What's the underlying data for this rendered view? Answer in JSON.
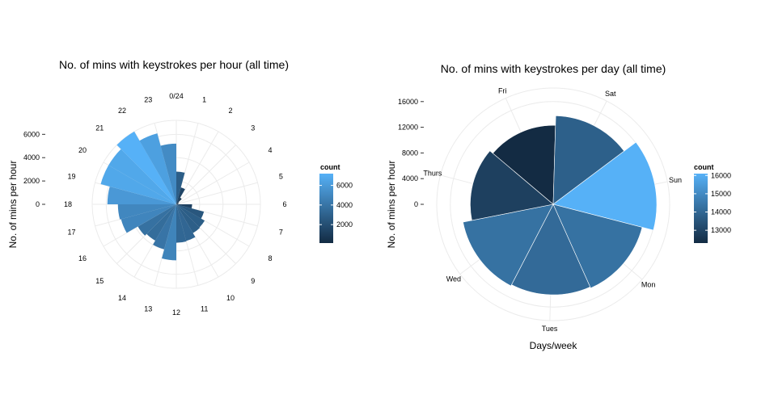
{
  "chart_data": [
    {
      "type": "bar",
      "coord": "polar",
      "title": "No. of mins with keystrokes per hour (all time)",
      "xlabel": "",
      "ylabel": "No. of mins per hour",
      "ylim": [
        0,
        7200
      ],
      "yticks": [
        0,
        2000,
        4000,
        6000
      ],
      "ytick_labels": [
        "0",
        "2000",
        "4000",
        "6000"
      ],
      "categories": [
        "0/24",
        "1",
        "2",
        "3",
        "4",
        "5",
        "6",
        "7",
        "8",
        "9",
        "10",
        "11",
        "12",
        "13",
        "14",
        "15",
        "16",
        "17",
        "18",
        "19",
        "20",
        "21",
        "22",
        "23"
      ],
      "values": [
        2800,
        1500,
        650,
        250,
        180,
        120,
        1350,
        2450,
        2800,
        2850,
        3250,
        3300,
        4800,
        4000,
        3600,
        3800,
        4900,
        5000,
        5900,
        6700,
        6700,
        7200,
        6300,
        5200
      ],
      "legend": {
        "title": "count",
        "position": "right",
        "ticks": [
          2000,
          4000,
          6000
        ],
        "tick_labels": [
          "2000",
          "4000",
          "6000"
        ],
        "min": 120,
        "max": 7200,
        "color_low": "#132b43",
        "color_high": "#56b1f7"
      }
    },
    {
      "type": "bar",
      "coord": "polar",
      "title": "No. of mins with keystrokes per day (all time)",
      "xlabel": "Days/week",
      "ylabel": "No. of mins per hour",
      "ylim": [
        0,
        16100
      ],
      "yticks": [
        0,
        4000,
        8000,
        12000,
        16000
      ],
      "ytick_labels": [
        "0",
        "4000",
        "8000",
        "12000",
        "16000"
      ],
      "categories": [
        "Fri",
        "Sat",
        "Sun",
        "Mon",
        "Tues",
        "Wed",
        "Thurs"
      ],
      "values": [
        12300,
        13800,
        16100,
        14300,
        14100,
        14300,
        12900
      ],
      "legend": {
        "title": "count",
        "position": "right",
        "ticks": [
          13000,
          14000,
          15000,
          16000
        ],
        "tick_labels": [
          "13000",
          "14000",
          "15000",
          "16000"
        ],
        "min": 12300,
        "max": 16100,
        "color_low": "#132b43",
        "color_high": "#56b1f7"
      }
    }
  ]
}
